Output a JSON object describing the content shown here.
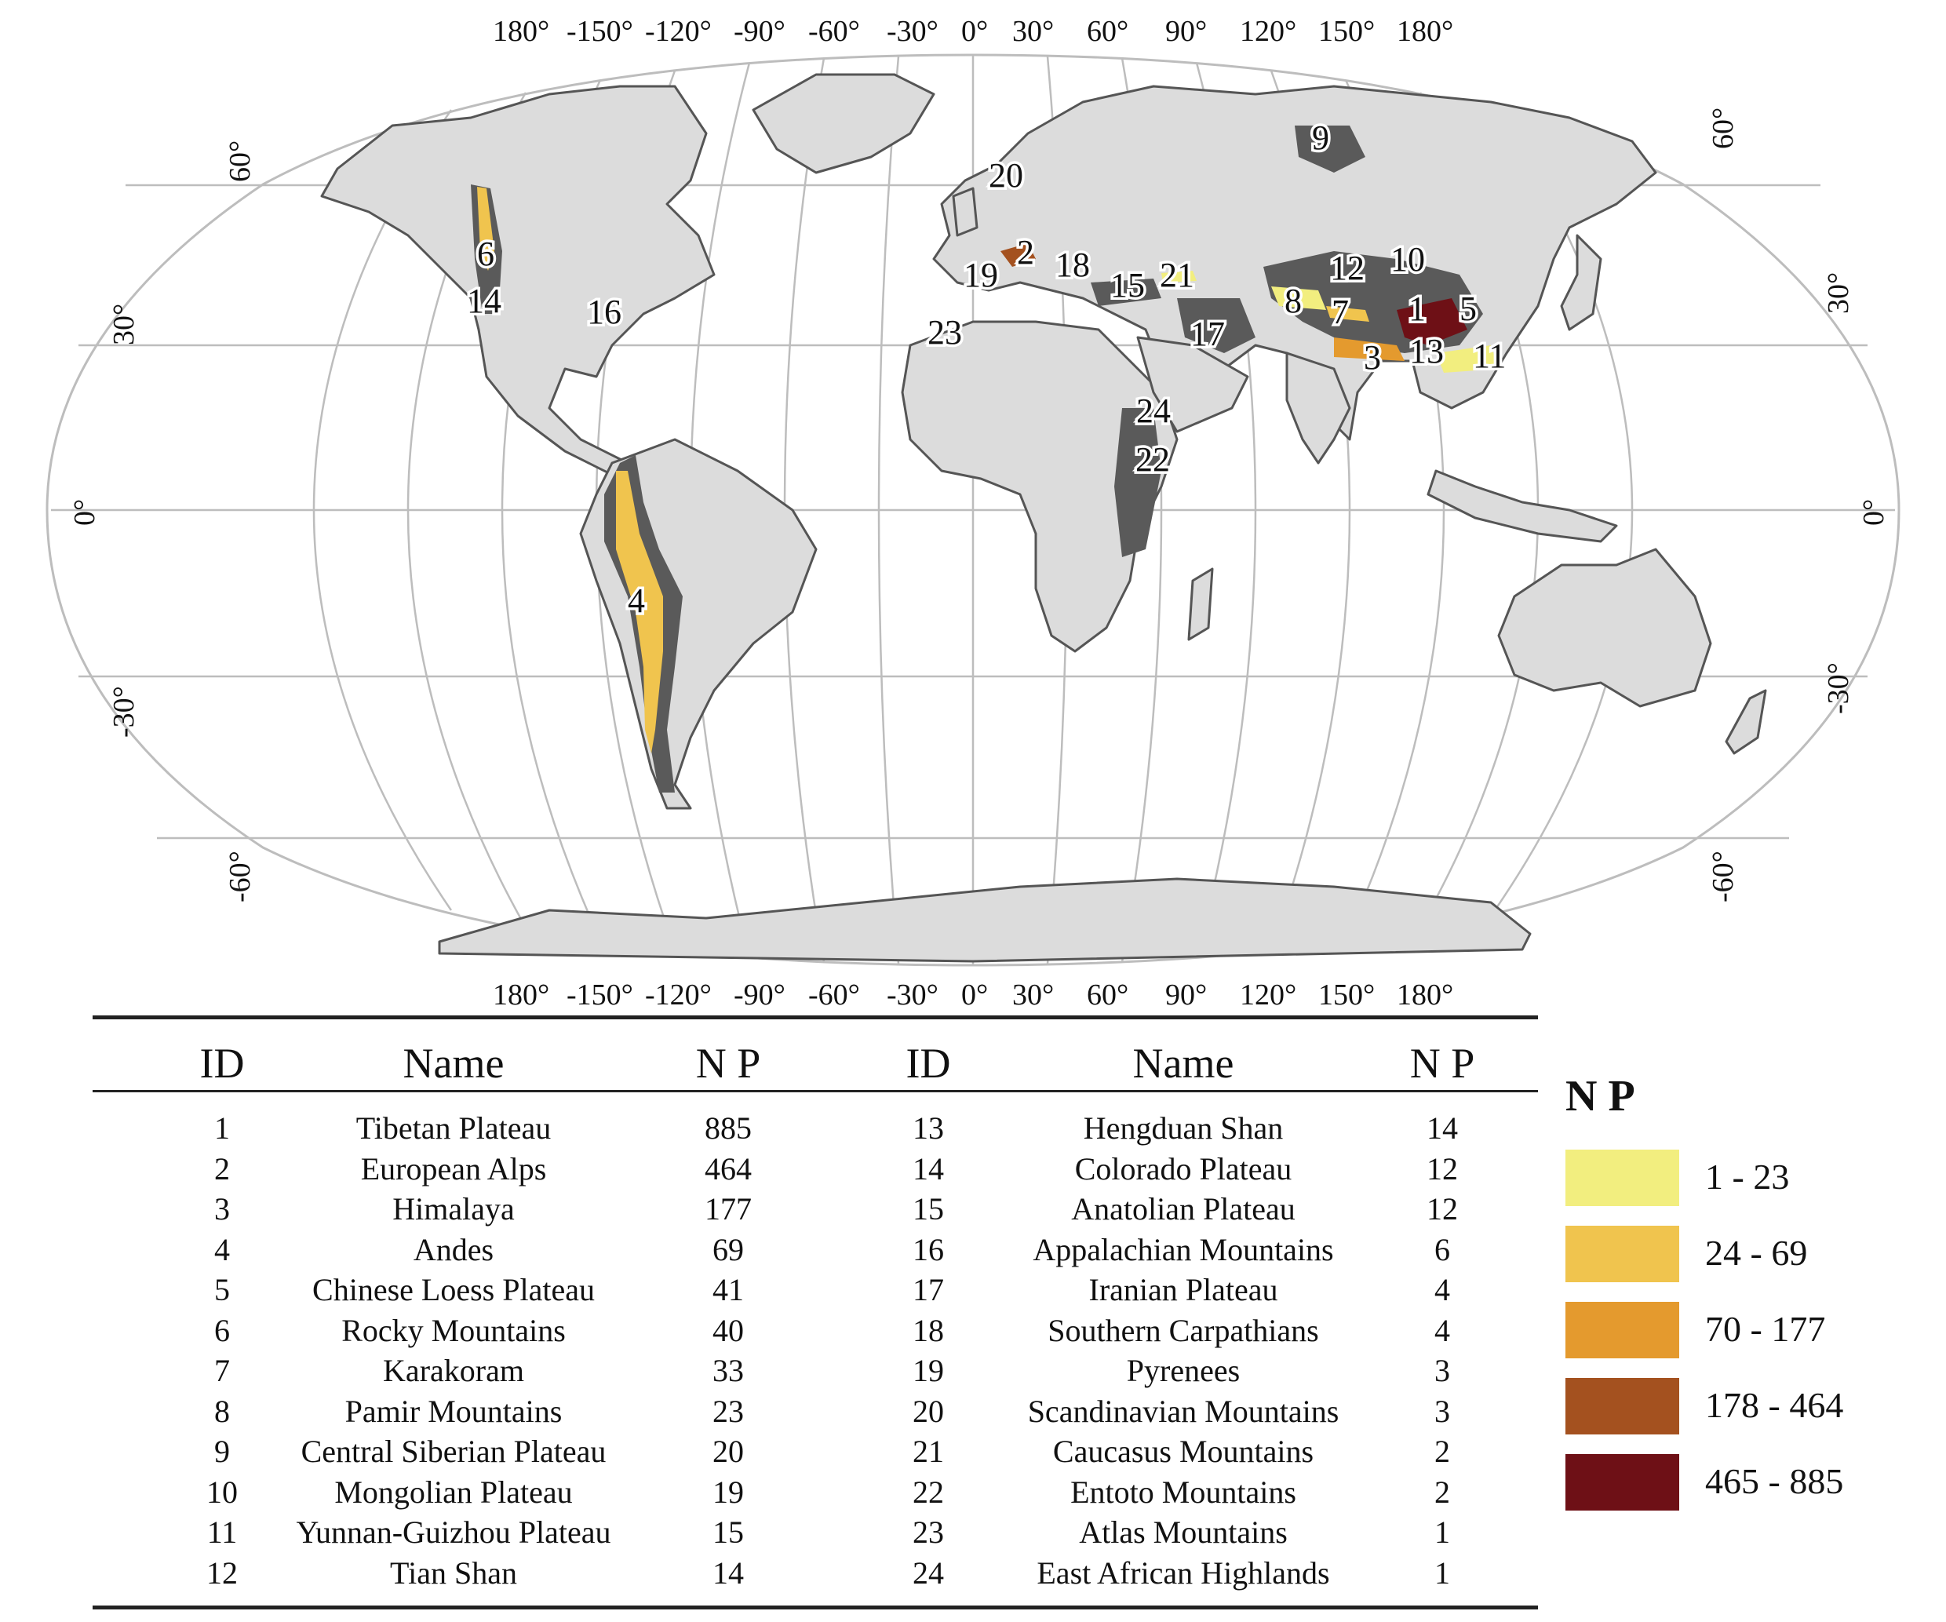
{
  "map": {
    "projection": "Robinson",
    "top_lon_labels": [
      "180°",
      "-150°",
      "-120°",
      "-90°",
      "-60°",
      "-30°",
      "0°",
      "30°",
      "60°",
      "90°",
      "120°",
      "150°",
      "180°"
    ],
    "bottom_lon_labels": [
      "180°",
      "-150°",
      "-120°",
      "-90°",
      "-60°",
      "-30°",
      "0°",
      "30°",
      "60°",
      "90°",
      "120°",
      "150°",
      "180°"
    ],
    "left_lat_labels": [
      "60°",
      "30°",
      "0°",
      "-30°",
      "-60°"
    ],
    "right_lat_labels": [
      "60°",
      "30°",
      "0°",
      "-30°",
      "-60°"
    ],
    "region_numbers": [
      "20",
      "9",
      "10",
      "12",
      "6",
      "14",
      "16",
      "2",
      "18",
      "19",
      "15",
      "21",
      "8",
      "7",
      "1",
      "5",
      "23",
      "17",
      "3",
      "13",
      "11",
      "24",
      "22",
      "4"
    ],
    "colors": {
      "land": "#dcdcdc",
      "coast": "#555555",
      "graticule": "#bdbdbd",
      "mountain": "#5a5a5a"
    }
  },
  "table": {
    "headers": [
      "ID",
      "Name",
      "N P",
      "ID",
      "Name",
      "N P"
    ],
    "left_rows": [
      {
        "id": "1",
        "name": "Tibetan Plateau",
        "np": "885"
      },
      {
        "id": "2",
        "name": "European Alps",
        "np": "464"
      },
      {
        "id": "3",
        "name": "Himalaya",
        "np": "177"
      },
      {
        "id": "4",
        "name": "Andes",
        "np": "69"
      },
      {
        "id": "5",
        "name": "Chinese Loess Plateau",
        "np": "41"
      },
      {
        "id": "6",
        "name": "Rocky Mountains",
        "np": "40"
      },
      {
        "id": "7",
        "name": "Karakoram",
        "np": "33"
      },
      {
        "id": "8",
        "name": "Pamir Mountains",
        "np": "23"
      },
      {
        "id": "9",
        "name": "Central Siberian Plateau",
        "np": "20"
      },
      {
        "id": "10",
        "name": "Mongolian Plateau",
        "np": "19"
      },
      {
        "id": "11",
        "name": "Yunnan-Guizhou Plateau",
        "np": "15"
      },
      {
        "id": "12",
        "name": "Tian Shan",
        "np": "14"
      }
    ],
    "right_rows": [
      {
        "id": "13",
        "name": "Hengduan Shan",
        "np": "14"
      },
      {
        "id": "14",
        "name": "Colorado Plateau",
        "np": "12"
      },
      {
        "id": "15",
        "name": "Anatolian Plateau",
        "np": "12"
      },
      {
        "id": "16",
        "name": "Appalachian Mountains",
        "np": "6"
      },
      {
        "id": "17",
        "name": "Iranian Plateau",
        "np": "4"
      },
      {
        "id": "18",
        "name": "Southern Carpathians",
        "np": "4"
      },
      {
        "id": "19",
        "name": "Pyrenees",
        "np": "3"
      },
      {
        "id": "20",
        "name": "Scandinavian Mountains",
        "np": "3"
      },
      {
        "id": "21",
        "name": "Caucasus Mountains",
        "np": "2"
      },
      {
        "id": "22",
        "name": "Entoto Mountains",
        "np": "2"
      },
      {
        "id": "23",
        "name": "Atlas Mountains",
        "np": "1"
      },
      {
        "id": "24",
        "name": "East African Highlands",
        "np": "1"
      }
    ]
  },
  "legend": {
    "title": "N P",
    "items": [
      {
        "label": "1 - 23",
        "color": "#f2ee7f"
      },
      {
        "label": "24 - 69",
        "color": "#f0c44e"
      },
      {
        "label": "70 - 177",
        "color": "#e49a2e"
      },
      {
        "label": "178 - 464",
        "color": "#a4511f"
      },
      {
        "label": "465 - 885",
        "color": "#6e1016"
      }
    ]
  }
}
